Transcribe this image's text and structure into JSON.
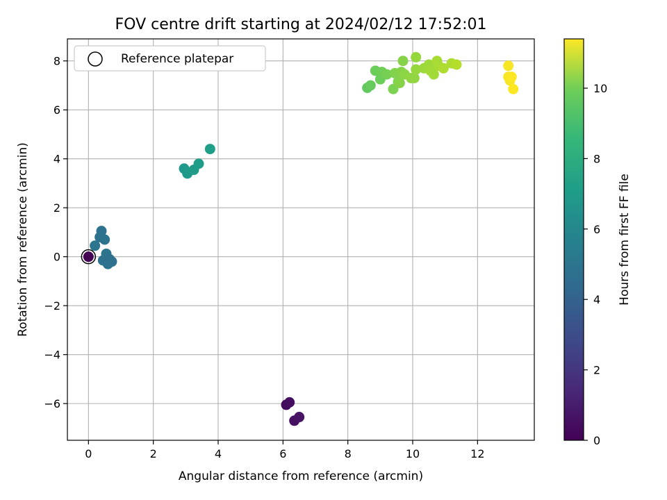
{
  "chart_data": {
    "type": "scatter",
    "title": "FOV centre drift starting at 2024/02/12 17:52:01",
    "xlabel": "Angular distance from reference (arcmin)",
    "ylabel": "Rotation from reference (arcmin)",
    "xlim": [
      -0.65,
      13.75
    ],
    "ylim": [
      -7.5,
      8.9
    ],
    "xticks": [
      0,
      2,
      4,
      6,
      8,
      10,
      12
    ],
    "yticks": [
      -6,
      -4,
      -2,
      0,
      2,
      4,
      6,
      8
    ],
    "xtick_labels": [
      "0",
      "2",
      "4",
      "6",
      "8",
      "10",
      "12"
    ],
    "ytick_labels": [
      "−6",
      "−4",
      "−2",
      "0",
      "2",
      "4",
      "6",
      "8"
    ],
    "grid": true,
    "legend": {
      "position": "upper-left",
      "entries": [
        "Reference platepar"
      ]
    },
    "colorbar": {
      "label": "Hours from first FF file",
      "colormap": "viridis",
      "range": [
        0,
        11.4
      ],
      "ticks": [
        0,
        2,
        4,
        6,
        8,
        10
      ],
      "tick_labels": [
        "0",
        "2",
        "4",
        "6",
        "8",
        "10"
      ]
    },
    "reference_point": {
      "x": 0,
      "y": 0,
      "label": "Reference platepar"
    },
    "points": [
      {
        "x": 0.0,
        "y": 0.0,
        "h": 0.0
      },
      {
        "x": 6.1,
        "y": -6.05,
        "h": 0.3
      },
      {
        "x": 6.2,
        "y": -5.95,
        "h": 0.4
      },
      {
        "x": 6.35,
        "y": -6.7,
        "h": 0.5
      },
      {
        "x": 6.5,
        "y": -6.55,
        "h": 0.6
      },
      {
        "x": 0.2,
        "y": 0.45,
        "h": 4.5
      },
      {
        "x": 0.35,
        "y": 0.8,
        "h": 4.4
      },
      {
        "x": 0.4,
        "y": 1.05,
        "h": 4.3
      },
      {
        "x": 0.5,
        "y": 0.7,
        "h": 4.4
      },
      {
        "x": 0.45,
        "y": -0.15,
        "h": 4.3
      },
      {
        "x": 0.55,
        "y": 0.12,
        "h": 4.4
      },
      {
        "x": 0.6,
        "y": -0.3,
        "h": 4.3
      },
      {
        "x": 0.65,
        "y": -0.1,
        "h": 4.2
      },
      {
        "x": 0.72,
        "y": -0.2,
        "h": 4.2
      },
      {
        "x": 2.95,
        "y": 3.6,
        "h": 6.1
      },
      {
        "x": 3.05,
        "y": 3.4,
        "h": 6.1
      },
      {
        "x": 3.25,
        "y": 3.55,
        "h": 6.2
      },
      {
        "x": 3.4,
        "y": 3.8,
        "h": 6.3
      },
      {
        "x": 3.75,
        "y": 4.4,
        "h": 6.4
      },
      {
        "x": 8.6,
        "y": 6.9,
        "h": 8.6
      },
      {
        "x": 8.7,
        "y": 7.0,
        "h": 8.7
      },
      {
        "x": 8.85,
        "y": 7.6,
        "h": 8.8
      },
      {
        "x": 9.0,
        "y": 7.25,
        "h": 8.8
      },
      {
        "x": 9.05,
        "y": 7.55,
        "h": 8.9
      },
      {
        "x": 9.2,
        "y": 7.45,
        "h": 9.0
      },
      {
        "x": 9.4,
        "y": 6.85,
        "h": 9.1
      },
      {
        "x": 9.45,
        "y": 7.5,
        "h": 9.2
      },
      {
        "x": 9.55,
        "y": 7.15,
        "h": 9.2
      },
      {
        "x": 9.6,
        "y": 7.1,
        "h": 9.3
      },
      {
        "x": 9.65,
        "y": 7.55,
        "h": 9.3
      },
      {
        "x": 9.7,
        "y": 8.0,
        "h": 9.3
      },
      {
        "x": 9.75,
        "y": 7.45,
        "h": 9.4
      },
      {
        "x": 9.95,
        "y": 7.3,
        "h": 9.5
      },
      {
        "x": 10.05,
        "y": 7.3,
        "h": 9.5
      },
      {
        "x": 10.1,
        "y": 7.65,
        "h": 9.6
      },
      {
        "x": 10.1,
        "y": 8.15,
        "h": 9.6
      },
      {
        "x": 10.35,
        "y": 7.7,
        "h": 9.7
      },
      {
        "x": 10.5,
        "y": 7.85,
        "h": 9.7
      },
      {
        "x": 10.55,
        "y": 7.6,
        "h": 9.8
      },
      {
        "x": 10.65,
        "y": 7.45,
        "h": 9.8
      },
      {
        "x": 10.75,
        "y": 8.0,
        "h": 9.9
      },
      {
        "x": 10.8,
        "y": 7.8,
        "h": 9.9
      },
      {
        "x": 10.95,
        "y": 7.7,
        "h": 10.0
      },
      {
        "x": 11.2,
        "y": 7.9,
        "h": 10.0
      },
      {
        "x": 11.35,
        "y": 7.85,
        "h": 10.1
      },
      {
        "x": 12.95,
        "y": 7.8,
        "h": 11.3
      },
      {
        "x": 12.95,
        "y": 7.35,
        "h": 11.3
      },
      {
        "x": 13.0,
        "y": 7.2,
        "h": 11.3
      },
      {
        "x": 13.05,
        "y": 7.35,
        "h": 11.4
      },
      {
        "x": 13.1,
        "y": 6.85,
        "h": 11.4
      }
    ]
  }
}
